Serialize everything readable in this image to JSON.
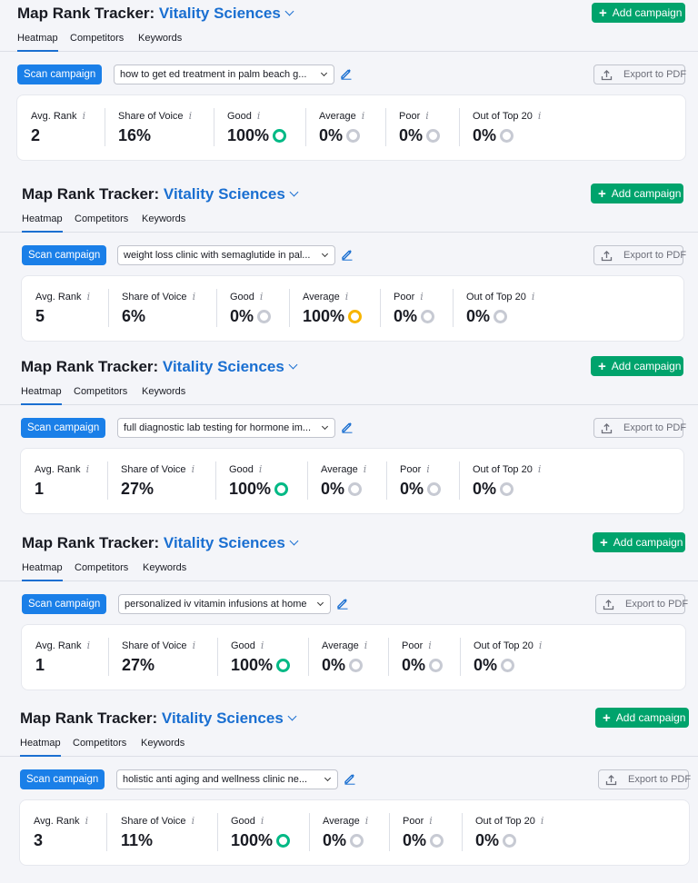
{
  "sections": [
    {
      "title_prefix": "Map Rank Tracker:",
      "campaign": "Vitality Sciences",
      "add_campaign": "Add campaign",
      "tabs": [
        "Heatmap",
        "Competitors",
        "Keywords"
      ],
      "scan_campaign": "Scan campaign",
      "keyword": "how to get ed treatment in palm beach g...",
      "export": "Export to PDF",
      "metrics": [
        {
          "label": "Avg. Rank",
          "value": "2",
          "status": ""
        },
        {
          "label": "Share of Voice",
          "value": "16%",
          "status": ""
        },
        {
          "label": "Good",
          "value": "100%",
          "status": "green"
        },
        {
          "label": "Average",
          "value": "0%",
          "status": "grey"
        },
        {
          "label": "Poor",
          "value": "0%",
          "status": "grey"
        },
        {
          "label": "Out of Top 20",
          "value": "0%",
          "status": "grey"
        }
      ]
    },
    {
      "title_prefix": "Map Rank Tracker:",
      "campaign": "Vitality Sciences",
      "add_campaign": "Add campaign",
      "tabs": [
        "Heatmap",
        "Competitors",
        "Keywords"
      ],
      "scan_campaign": "Scan campaign",
      "keyword": "weight loss clinic with semaglutide in pal...",
      "export": "Export to PDF",
      "metrics": [
        {
          "label": "Avg. Rank",
          "value": "5",
          "status": ""
        },
        {
          "label": "Share of Voice",
          "value": "6%",
          "status": ""
        },
        {
          "label": "Good",
          "value": "0%",
          "status": "grey"
        },
        {
          "label": "Average",
          "value": "100%",
          "status": "yellow"
        },
        {
          "label": "Poor",
          "value": "0%",
          "status": "grey"
        },
        {
          "label": "Out of Top 20",
          "value": "0%",
          "status": "grey"
        }
      ]
    },
    {
      "title_prefix": "Map Rank Tracker:",
      "campaign": "Vitality Sciences",
      "add_campaign": "Add campaign",
      "tabs": [
        "Heatmap",
        "Competitors",
        "Keywords"
      ],
      "scan_campaign": "Scan campaign",
      "keyword": "full diagnostic lab testing for hormone im...",
      "export": "Export to PDF",
      "metrics": [
        {
          "label": "Avg. Rank",
          "value": "1",
          "status": ""
        },
        {
          "label": "Share of Voice",
          "value": "27%",
          "status": ""
        },
        {
          "label": "Good",
          "value": "100%",
          "status": "green"
        },
        {
          "label": "Average",
          "value": "0%",
          "status": "grey"
        },
        {
          "label": "Poor",
          "value": "0%",
          "status": "grey"
        },
        {
          "label": "Out of Top 20",
          "value": "0%",
          "status": "grey"
        }
      ]
    },
    {
      "title_prefix": "Map Rank Tracker:",
      "campaign": "Vitality Sciences",
      "add_campaign": "Add campaign",
      "tabs": [
        "Heatmap",
        "Competitors",
        "Keywords"
      ],
      "scan_campaign": "Scan campaign",
      "keyword": "personalized iv vitamin infusions at home",
      "export": "Export to PDF",
      "metrics": [
        {
          "label": "Avg. Rank",
          "value": "1",
          "status": ""
        },
        {
          "label": "Share of Voice",
          "value": "27%",
          "status": ""
        },
        {
          "label": "Good",
          "value": "100%",
          "status": "green"
        },
        {
          "label": "Average",
          "value": "0%",
          "status": "grey"
        },
        {
          "label": "Poor",
          "value": "0%",
          "status": "grey"
        },
        {
          "label": "Out of Top 20",
          "value": "0%",
          "status": "grey"
        }
      ]
    },
    {
      "title_prefix": "Map Rank Tracker:",
      "campaign": "Vitality Sciences",
      "add_campaign": "Add campaign",
      "tabs": [
        "Heatmap",
        "Competitors",
        "Keywords"
      ],
      "scan_campaign": "Scan campaign",
      "keyword": "holistic anti aging and wellness clinic ne...",
      "export": "Export to PDF",
      "metrics": [
        {
          "label": "Avg. Rank",
          "value": "3",
          "status": ""
        },
        {
          "label": "Share of Voice",
          "value": "11%",
          "status": ""
        },
        {
          "label": "Good",
          "value": "100%",
          "status": "green"
        },
        {
          "label": "Average",
          "value": "0%",
          "status": "grey"
        },
        {
          "label": "Poor",
          "value": "0%",
          "status": "grey"
        },
        {
          "label": "Out of Top 20",
          "value": "0%",
          "status": "grey"
        }
      ]
    }
  ]
}
